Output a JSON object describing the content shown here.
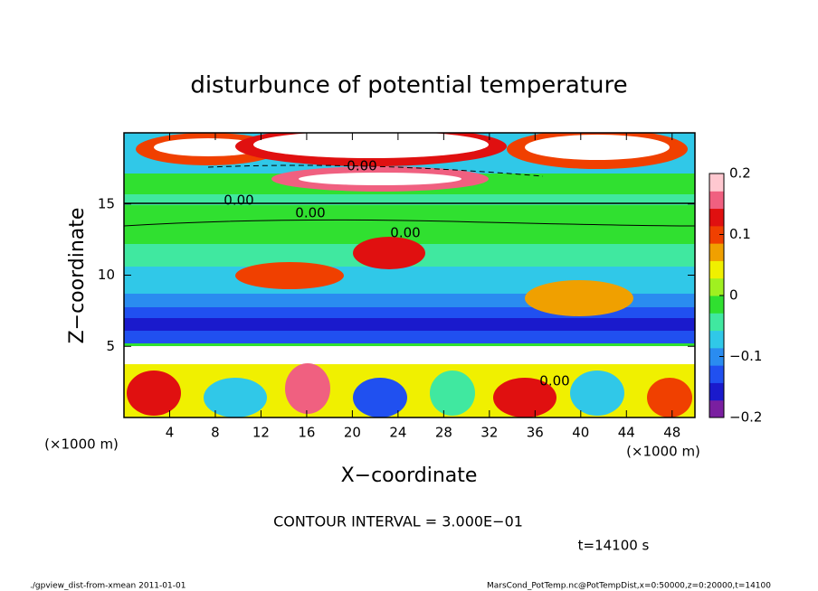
{
  "chart_data": {
    "type": "contour",
    "title": "disturbunce of potential temperature",
    "x_label": "X−coordinate",
    "y_label": "Z−coordinate",
    "x_unit_left": "(×1000 m)",
    "x_unit_right": "(×1000 m)",
    "xlim": [
      0,
      50
    ],
    "xticks": [
      4,
      8,
      12,
      16,
      20,
      24,
      28,
      32,
      36,
      40,
      44,
      48
    ],
    "ylim": [
      0,
      20
    ],
    "yticks": [
      5,
      10,
      15
    ],
    "colorbar": {
      "lim": [
        -0.2,
        0.2
      ],
      "ticks": [
        {
          "value": -0.2,
          "label": "−0.2"
        },
        {
          "value": -0.1,
          "label": "−0.1"
        },
        0,
        0.1,
        0.2
      ],
      "colors": [
        "#7a1fa0",
        "#1a1acc",
        "#2050f0",
        "#2a8cf0",
        "#30c8e8",
        "#40e8a0",
        "#30e030",
        "#a0f020",
        "#f0f000",
        "#f0a000",
        "#f04000",
        "#e01010",
        "#f06080",
        "#ffc8d0"
      ]
    },
    "contour_labels": [
      "0.00",
      "0.00",
      "0.00",
      "0.00",
      "0.00"
    ],
    "contour_interval": "CONTOUR INTERVAL = 3.000E−01",
    "time_label": "t=14100 s",
    "footer_left": "./gpview_dist-from-xmean   2011-01-01",
    "footer_right": "MarsCond_PotTemp.nc@PotTempDist,x=0:50000,z=0:20000,t=14100"
  }
}
